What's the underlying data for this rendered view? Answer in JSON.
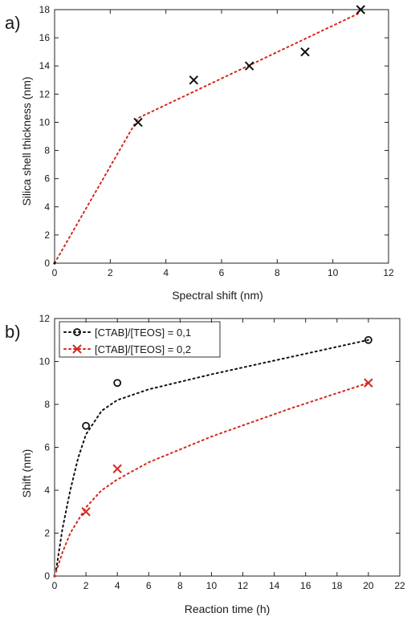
{
  "chart_data": [
    {
      "type": "scatter",
      "panel_label": "a)",
      "xlabel": "Spectral shift (nm)",
      "ylabel": "Silica shell thickness (nm)",
      "xlim": [
        0,
        12
      ],
      "ylim": [
        0,
        18
      ],
      "xticks": [
        0,
        2,
        4,
        6,
        8,
        10,
        12
      ],
      "yticks": [
        0,
        2,
        4,
        6,
        8,
        10,
        12,
        14,
        16,
        18
      ],
      "grid": false,
      "series": [
        {
          "marker": "x",
          "color": "#111111",
          "points": [
            {
              "x": 0,
              "y": 0
            },
            {
              "x": 3,
              "y": 10
            },
            {
              "x": 5,
              "y": 13
            },
            {
              "x": 7,
              "y": 14
            },
            {
              "x": 9,
              "y": 15
            },
            {
              "x": 11,
              "y": 18
            }
          ]
        }
      ],
      "fit": {
        "style": "dotted",
        "color": "#d42a1e",
        "points": [
          {
            "x": 0,
            "y": 0
          },
          {
            "x": 3,
            "y": 10.3
          },
          {
            "x": 11,
            "y": 17.8
          }
        ]
      }
    },
    {
      "type": "scatter",
      "panel_label": "b)",
      "xlabel": "Reaction time (h)",
      "ylabel": "Shift (nm)",
      "xlim": [
        0,
        22
      ],
      "ylim": [
        0,
        12
      ],
      "xticks": [
        0,
        2,
        4,
        6,
        8,
        10,
        12,
        14,
        16,
        18,
        20,
        22
      ],
      "yticks": [
        0,
        2,
        4,
        6,
        8,
        10,
        12
      ],
      "grid": false,
      "legend_position": "top-left",
      "series": [
        {
          "name": "[CTAB]/[TEOS] = 0,1",
          "marker": "o",
          "color": "#111111",
          "points": [
            {
              "x": 0,
              "y": 0
            },
            {
              "x": 2,
              "y": 7
            },
            {
              "x": 4,
              "y": 9
            },
            {
              "x": 20,
              "y": 11
            }
          ],
          "fit_points": [
            {
              "x": 0.1,
              "y": 0.3
            },
            {
              "x": 0.5,
              "y": 2.2
            },
            {
              "x": 1,
              "y": 4.0
            },
            {
              "x": 1.5,
              "y": 5.5
            },
            {
              "x": 2,
              "y": 6.6
            },
            {
              "x": 3,
              "y": 7.7
            },
            {
              "x": 4,
              "y": 8.2
            },
            {
              "x": 6,
              "y": 8.7
            },
            {
              "x": 10,
              "y": 9.4
            },
            {
              "x": 15,
              "y": 10.2
            },
            {
              "x": 20,
              "y": 11
            }
          ]
        },
        {
          "name": "[CTAB]/[TEOS] = 0,2",
          "marker": "x",
          "color": "#d42a1e",
          "points": [
            {
              "x": 0,
              "y": 0
            },
            {
              "x": 2,
              "y": 3
            },
            {
              "x": 4,
              "y": 5
            },
            {
              "x": 20,
              "y": 9
            }
          ],
          "fit_points": [
            {
              "x": 0.1,
              "y": 0.2
            },
            {
              "x": 0.5,
              "y": 1.1
            },
            {
              "x": 1,
              "y": 2.0
            },
            {
              "x": 2,
              "y": 3.2
            },
            {
              "x": 3,
              "y": 4.0
            },
            {
              "x": 4,
              "y": 4.5
            },
            {
              "x": 6,
              "y": 5.3
            },
            {
              "x": 10,
              "y": 6.5
            },
            {
              "x": 15,
              "y": 7.8
            },
            {
              "x": 20,
              "y": 9
            }
          ]
        }
      ]
    }
  ]
}
